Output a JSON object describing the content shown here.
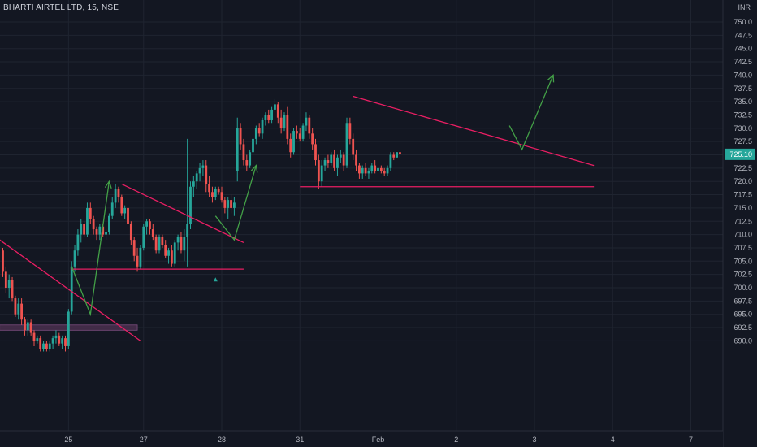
{
  "header": {
    "symbol_title": "BHARTI AIRTEL LTD, 15, NSE",
    "currency": "INR"
  },
  "colors": {
    "background": "#131722",
    "grid": "#1f2430",
    "up": "#26a69a",
    "down": "#ef5350",
    "trendline": "#e91e63",
    "projection": "#43a047",
    "zone": "#4a2f4d",
    "axis_text": "#b2b5be",
    "price_badge": "#26a69a"
  },
  "chart_data": {
    "type": "candlestick",
    "title": "BHARTI AIRTEL LTD, 15, NSE",
    "ylim": [
      687.5,
      752.5
    ],
    "y_ticks": [
      690,
      692.5,
      695,
      697.5,
      700,
      702.5,
      705,
      707.5,
      710,
      712.5,
      715,
      717.5,
      720,
      722.5,
      725,
      727.5,
      730,
      732.5,
      735,
      737.5,
      740,
      742.5,
      745,
      747.5,
      750
    ],
    "x_ticks": [
      {
        "label": "25",
        "index": 21
      },
      {
        "label": "27",
        "index": 45
      },
      {
        "label": "28",
        "index": 70
      },
      {
        "label": "31",
        "index": 95
      },
      {
        "label": "Feb",
        "index": 120
      },
      {
        "label": "2",
        "index": 145
      },
      {
        "label": "3",
        "index": 170
      },
      {
        "label": "4",
        "index": 195
      },
      {
        "label": "7",
        "index": 220
      }
    ],
    "last_price": "725.10",
    "last_price_value": 725.1,
    "ohlc": [
      [
        707,
        707.5,
        702,
        703
      ],
      [
        703,
        704,
        699,
        700
      ],
      [
        700,
        702.5,
        698,
        701.5
      ],
      [
        701.5,
        702,
        697.5,
        698
      ],
      [
        698,
        698.5,
        694.5,
        695
      ],
      [
        695,
        698,
        694,
        697
      ],
      [
        697,
        698,
        693,
        694
      ],
      [
        694,
        694.5,
        691,
        692
      ],
      [
        692,
        694,
        691,
        693.5
      ],
      [
        693.5,
        694,
        691,
        691.5
      ],
      [
        691.5,
        692,
        689,
        690
      ],
      [
        690,
        691,
        689.5,
        690.5
      ],
      [
        690.5,
        691,
        688,
        688.5
      ],
      [
        688.5,
        690,
        688,
        689.5
      ],
      [
        689.5,
        690,
        688,
        688.5
      ],
      [
        688.5,
        690,
        688,
        689.5
      ],
      [
        689.5,
        691,
        688.5,
        690.5
      ],
      [
        690.5,
        692,
        689.5,
        691
      ],
      [
        691,
        691.5,
        689,
        689.5
      ],
      [
        689.5,
        691,
        688.5,
        690.5
      ],
      [
        690.5,
        691,
        688,
        689
      ],
      [
        689,
        696,
        688.5,
        695.5
      ],
      [
        695.5,
        705,
        695,
        704
      ],
      [
        704,
        708,
        703,
        707
      ],
      [
        707,
        711,
        706,
        710
      ],
      [
        710,
        713,
        708.5,
        712
      ],
      [
        712,
        712.5,
        709.5,
        710
      ],
      [
        710,
        716,
        709.5,
        715
      ],
      [
        715,
        716,
        712,
        713
      ],
      [
        713,
        713.5,
        710,
        711
      ],
      [
        711,
        711.5,
        709,
        710
      ],
      [
        710,
        712,
        709,
        711.5
      ],
      [
        711.5,
        712,
        709.5,
        710
      ],
      [
        710,
        711,
        709,
        710.5
      ],
      [
        710.5,
        714,
        710,
        713.5
      ],
      [
        713.5,
        717,
        713,
        716
      ],
      [
        716,
        719.5,
        715,
        718.5
      ],
      [
        718.5,
        719,
        716,
        717
      ],
      [
        717,
        717.5,
        713.5,
        714
      ],
      [
        714,
        715.5,
        713,
        715
      ],
      [
        715,
        715.5,
        711.5,
        712
      ],
      [
        712,
        712.5,
        708,
        709
      ],
      [
        709,
        709.5,
        705,
        706
      ],
      [
        706,
        707.5,
        703,
        704
      ],
      [
        704,
        708,
        703.5,
        707.5
      ],
      [
        707.5,
        712,
        707,
        711.5
      ],
      [
        711.5,
        713,
        710,
        712.5
      ],
      [
        712.5,
        713,
        710,
        711
      ],
      [
        711,
        712,
        709,
        709.5
      ],
      [
        709.5,
        710,
        706.5,
        707
      ],
      [
        707,
        710,
        706.5,
        709.5
      ],
      [
        709.5,
        710,
        707.5,
        708
      ],
      [
        708,
        709,
        705.5,
        706
      ],
      [
        706,
        707.5,
        704.5,
        707
      ],
      [
        707,
        708,
        704,
        704.5
      ],
      [
        704.5,
        709,
        704,
        708.5
      ],
      [
        708.5,
        710,
        707,
        709.5
      ],
      [
        709.5,
        710.5,
        706.5,
        707
      ],
      [
        707,
        711,
        705,
        709.5
      ],
      [
        709.5,
        728,
        704,
        712
      ],
      [
        712,
        720,
        711,
        719
      ],
      [
        719,
        721,
        717,
        720
      ],
      [
        720,
        722,
        718.5,
        721.5
      ],
      [
        721.5,
        723.5,
        720,
        722.5
      ],
      [
        722.5,
        724,
        721,
        723
      ],
      [
        723,
        724,
        718,
        719.5
      ],
      [
        719.5,
        721,
        717,
        718
      ],
      [
        718,
        719,
        716,
        717
      ],
      [
        717,
        719,
        716.5,
        718.5
      ],
      [
        718.5,
        719,
        717.5,
        718
      ],
      [
        718,
        719,
        716,
        716.5
      ],
      [
        716.5,
        717,
        714,
        715
      ],
      [
        715,
        717,
        713,
        716.5
      ],
      [
        716.5,
        717.5,
        714,
        715
      ],
      [
        715,
        717,
        713.5,
        716
      ],
      [
        722,
        732,
        720,
        730
      ],
      [
        730,
        731,
        726,
        727
      ],
      [
        727,
        728,
        723,
        724
      ],
      [
        724,
        725,
        722,
        723
      ],
      [
        723,
        726,
        722.5,
        725.5
      ],
      [
        725.5,
        729,
        725,
        728
      ],
      [
        728,
        730.5,
        727,
        730
      ],
      [
        730,
        731,
        728.5,
        729
      ],
      [
        729,
        732,
        728,
        731.5
      ],
      [
        731.5,
        733,
        730.5,
        732.5
      ],
      [
        732.5,
        733.5,
        731,
        731.5
      ],
      [
        731.5,
        734,
        731,
        733.5
      ],
      [
        733.5,
        735.5,
        733,
        734.5
      ],
      [
        734.5,
        735,
        731,
        732
      ],
      [
        732,
        733.5,
        729,
        730
      ],
      [
        730,
        733,
        729.5,
        732.5
      ],
      [
        732.5,
        734,
        727,
        728
      ],
      [
        728,
        729,
        724.5,
        725.5
      ],
      [
        725.5,
        730,
        725,
        729.5
      ],
      [
        729.5,
        730.5,
        728,
        729
      ],
      [
        729,
        730,
        727.5,
        728
      ],
      [
        728,
        731,
        727.5,
        730.5
      ],
      [
        730.5,
        733,
        729.5,
        732
      ],
      [
        732,
        732.5,
        728,
        729
      ],
      [
        729,
        730,
        726,
        727
      ],
      [
        727,
        728,
        723,
        724
      ],
      [
        724,
        725,
        718.5,
        720
      ],
      [
        720,
        724,
        719,
        723
      ],
      [
        723,
        724.5,
        722,
        724
      ],
      [
        724,
        725,
        722.5,
        723.5
      ],
      [
        723.5,
        725.5,
        723,
        725
      ],
      [
        725,
        726,
        722,
        722.5
      ],
      [
        722.5,
        725,
        721,
        724.5
      ],
      [
        724.5,
        726,
        723.5,
        725
      ],
      [
        725,
        725.5,
        722,
        723
      ],
      [
        723,
        732,
        722.5,
        731
      ],
      [
        731,
        732,
        727,
        728
      ],
      [
        728,
        729,
        724,
        725
      ],
      [
        725,
        726,
        722,
        723
      ],
      [
        723,
        723.5,
        720.5,
        721.5
      ],
      [
        721.5,
        723,
        720.5,
        722.5
      ],
      [
        722.5,
        723.5,
        721,
        721.5
      ],
      [
        721.5,
        722.5,
        720.5,
        722
      ],
      [
        722,
        723.5,
        721.5,
        723
      ],
      [
        723,
        724,
        721.5,
        722
      ],
      [
        722,
        723,
        721,
        722.5
      ],
      [
        722.5,
        723,
        721.5,
        722
      ],
      [
        722,
        722.5,
        721,
        721.5
      ],
      [
        721.5,
        723,
        721,
        722.5
      ],
      [
        722.5,
        725.5,
        722,
        725
      ],
      [
        725,
        725.5,
        724,
        724.5
      ],
      [
        724.5,
        725.5,
        724.5,
        725.5
      ],
      [
        725.5,
        725.5,
        724.5,
        725.1
      ]
    ],
    "annotations": {
      "trendlines": [
        {
          "from": [
            -1,
            709
          ],
          "to": [
            44,
            690
          ]
        },
        {
          "from": [
            38,
            719.5
          ],
          "to": [
            77,
            708.5
          ]
        },
        {
          "from": [
            22,
            703.5
          ],
          "to": [
            77,
            703.5
          ]
        },
        {
          "from": [
            112,
            736
          ],
          "to": [
            189,
            723
          ]
        },
        {
          "from": [
            95,
            719
          ],
          "to": [
            189,
            719
          ]
        }
      ],
      "projections": [
        [
          [
            22,
            704
          ],
          [
            28,
            695
          ],
          [
            34,
            720
          ]
        ],
        [
          [
            68,
            713.5
          ],
          [
            74,
            709
          ],
          [
            81,
            723
          ]
        ],
        [
          [
            162,
            730.5
          ],
          [
            166,
            726
          ],
          [
            176,
            740
          ]
        ]
      ],
      "demand_zone": {
        "from": [
          -1,
          693
        ],
        "to": [
          43,
          692
        ]
      },
      "marker": {
        "at": [
          68,
          701.5
        ],
        "symbol": "triangle-up"
      }
    }
  }
}
